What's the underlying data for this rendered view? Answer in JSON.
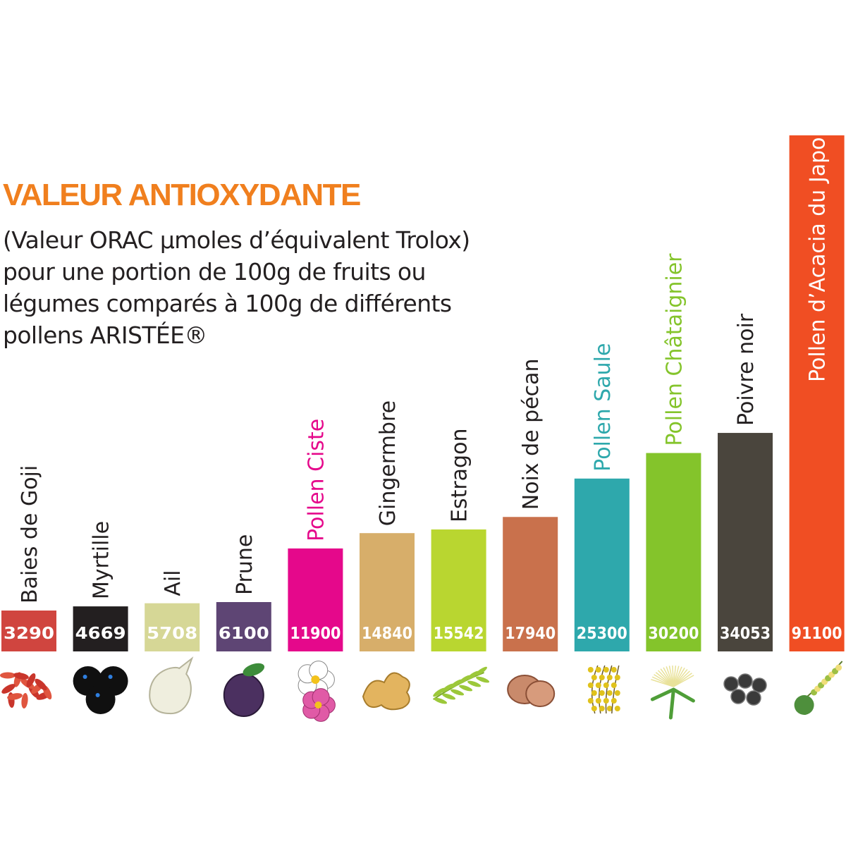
{
  "header": {
    "title": "VALEUR ANTIOXYDANTE",
    "subtitle": "(Valeur ORAC µmoles d’équivalent Trolox) pour une portion de 100g de fruits ou légumes comparés à 100g de différents pollens ARISTÉE®"
  },
  "chart_data": {
    "type": "bar",
    "title": "VALEUR ANTIOXYDANTE",
    "xlabel": "",
    "ylabel": "",
    "ylim": [
      0,
      91100
    ],
    "categories": [
      "Baies de Goji",
      "Myrtille",
      "Ail",
      "Prune",
      "Pollen Ciste",
      "Gingermbre",
      "Estragon",
      "Noix de pécan",
      "Pollen Saule",
      "Pollen Châtaignier",
      "Poivre noir",
      "Pollen d’Acacia du Japon"
    ],
    "values": [
      3290,
      4669,
      5708,
      6100,
      11900,
      14840,
      15542,
      17940,
      25300,
      30200,
      34053,
      91100
    ],
    "value_labels": [
      "3290",
      "4669",
      "5708",
      "6100",
      "11900",
      "14840",
      "15542",
      "17940",
      "25300",
      "30200",
      "34053",
      "91100"
    ],
    "bar_colors": [
      "#d0453f",
      "#231f20",
      "#d6d796",
      "#5e4574",
      "#e5088b",
      "#d7ae6a",
      "#b9d630",
      "#c9714c",
      "#2ea8ac",
      "#84c42b",
      "#4a453d",
      "#f04e23"
    ],
    "label_colors": [
      "#231f20",
      "#231f20",
      "#231f20",
      "#231f20",
      "#e5088b",
      "#231f20",
      "#231f20",
      "#231f20",
      "#2ea8ac",
      "#84c42b",
      "#231f20",
      "#ffffff"
    ],
    "icons": [
      "goji-berries-icon",
      "blueberry-icon",
      "garlic-icon",
      "plum-icon",
      "cistus-flower-icon",
      "ginger-icon",
      "tarragon-icon",
      "pecan-icon",
      "willow-pollen-icon",
      "chestnut-flower-icon",
      "black-pepper-icon",
      "acacia-icon"
    ],
    "grid": false,
    "legend": "none"
  }
}
